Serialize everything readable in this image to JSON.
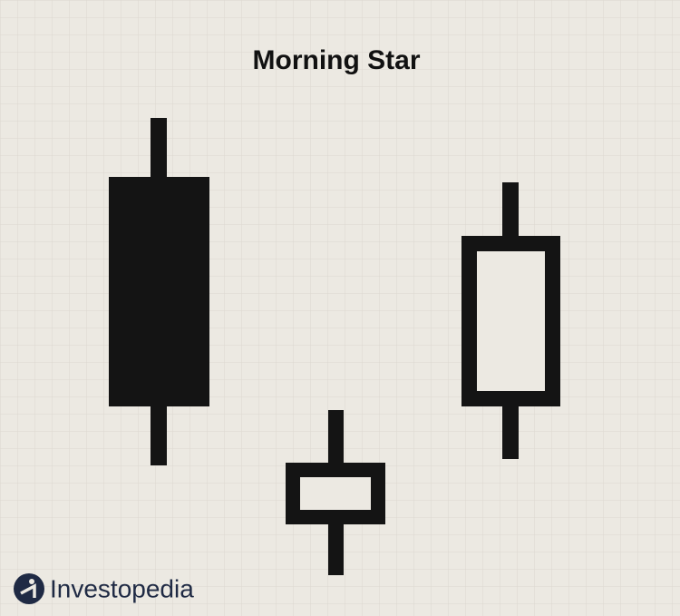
{
  "title": "Morning Star",
  "brand": "Investopedia"
}
